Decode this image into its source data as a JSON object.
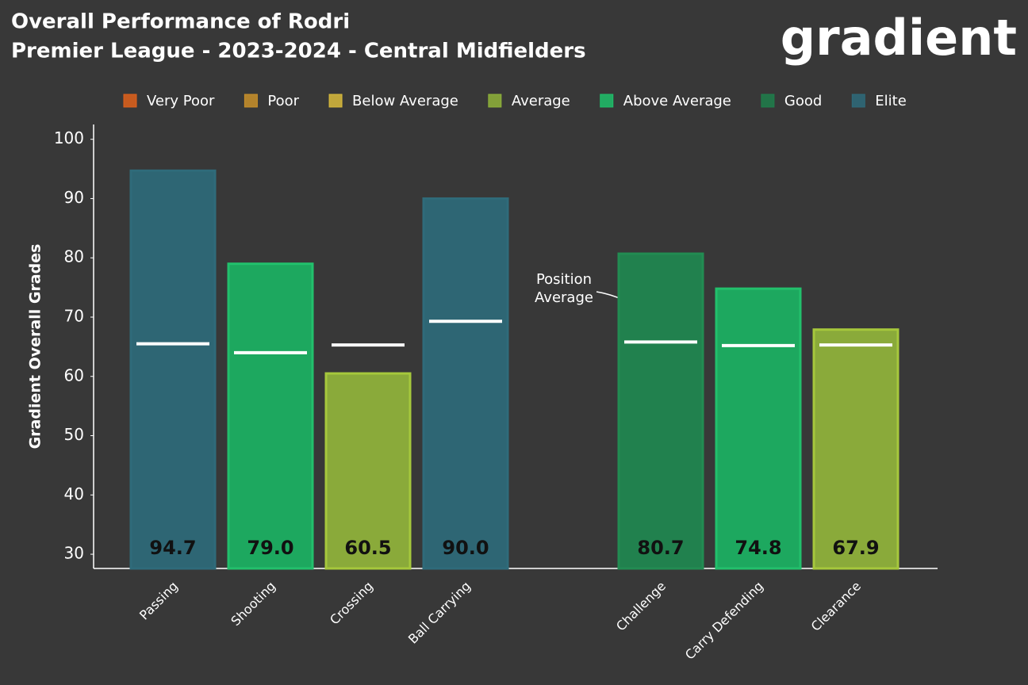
{
  "chart_data": {
    "type": "bar",
    "title": "Overall Performance of Rodri",
    "subtitle": "Premier League - 2023-2024 - Central Midfielders",
    "logo": "gradient",
    "y_label": "Gradient Overall Grades",
    "legend": [
      {
        "name": "Very Poor",
        "color": "#e0611b"
      },
      {
        "name": "Poor",
        "color": "#c9902a"
      },
      {
        "name": "Below Average",
        "color": "#d9bb3c"
      },
      {
        "name": "Average",
        "color": "#8fb33a"
      },
      {
        "name": "Above Average",
        "color": "#1fbf6a"
      },
      {
        "name": "Good",
        "color": "#1e7f4b"
      },
      {
        "name": "Elite",
        "color": "#2e6b7b"
      }
    ],
    "categories": [
      "Passing",
      "Shooting",
      "Crossing",
      "Ball Carrying",
      null,
      "Challenge",
      "Carry Defending",
      "Clearance"
    ],
    "values": [
      94.7,
      79.0,
      60.5,
      90.0,
      null,
      80.7,
      74.8,
      67.9
    ],
    "value_labels": [
      "94.7",
      "79.0",
      "60.5",
      "90.0",
      null,
      "80.7",
      "74.8",
      "67.9"
    ],
    "colors": [
      "#2e6674",
      "#1da85f",
      "#8aaa3a",
      "#2e6674",
      null,
      "#21814e",
      "#1da85f",
      "#8aaa3a"
    ],
    "edge_colors": [
      "#2f6b7a",
      "#22c06c",
      "#a6c83c",
      "#2f6b7a",
      null,
      "#228c52",
      "#22c06c",
      "#a6c83c"
    ],
    "position_average": [
      65.5,
      64.0,
      65.3,
      69.3,
      null,
      65.8,
      65.2,
      65.3
    ],
    "annotation": [
      "Position",
      "Average"
    ],
    "ylim": [
      27.6,
      102.5
    ],
    "yticks": [
      30,
      40,
      50,
      60,
      70,
      80,
      90,
      100
    ],
    "grid": false
  }
}
